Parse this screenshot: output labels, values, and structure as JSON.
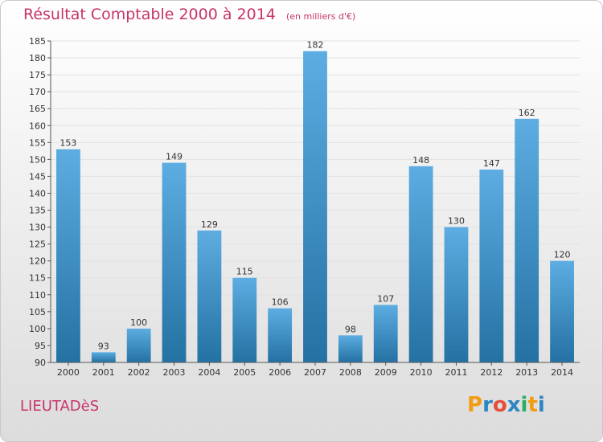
{
  "title": "Résultat Comptable 2000 à 2014",
  "subtitle": "(en milliers d'€)",
  "town": "LIEUTADèS",
  "logo": {
    "letters": [
      "P",
      "r",
      "o",
      "x",
      "i",
      "t",
      "i"
    ],
    "colors": [
      "#f39c12",
      "#2e86c1",
      "#e74c3c",
      "#2e86c1",
      "#27ae60",
      "#f39c12",
      "#2e86c1"
    ]
  },
  "colors": {
    "bar_top": "#5dade2",
    "bar_bottom": "#2471a3",
    "title": "#c8336a"
  },
  "chart_data": {
    "type": "bar",
    "categories": [
      "2000",
      "2001",
      "2002",
      "2003",
      "2004",
      "2005",
      "2006",
      "2007",
      "2008",
      "2009",
      "2010",
      "2011",
      "2012",
      "2013",
      "2014"
    ],
    "values": [
      153,
      93,
      100,
      149,
      129,
      115,
      106,
      182,
      98,
      107,
      148,
      130,
      147,
      162,
      120
    ],
    "ylim": [
      90,
      185
    ],
    "yticks": [
      90,
      95,
      100,
      105,
      110,
      115,
      120,
      125,
      130,
      135,
      140,
      145,
      150,
      155,
      160,
      165,
      170,
      175,
      180,
      185
    ],
    "grid": true
  }
}
